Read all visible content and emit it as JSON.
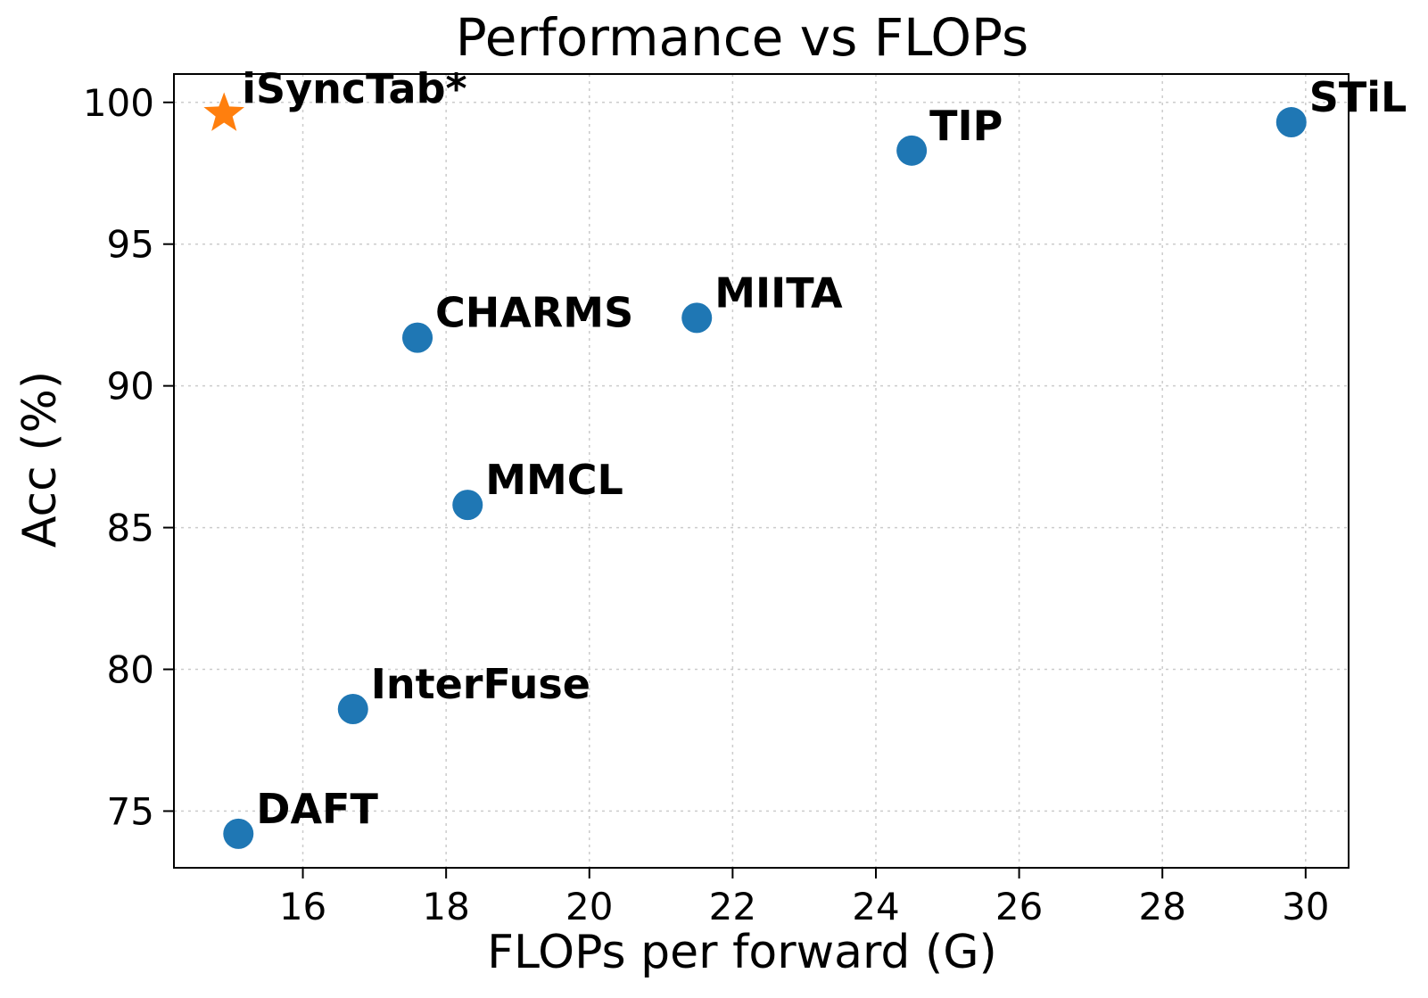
{
  "chart_data": {
    "type": "scatter",
    "title": "Performance vs FLOPs",
    "xlabel": "FLOPs per forward (G)",
    "ylabel": "Acc (%)",
    "xlim": [
      14.2,
      30.6
    ],
    "ylim": [
      73.0,
      101.0
    ],
    "xticks": [
      16,
      18,
      20,
      22,
      24,
      26,
      28,
      30
    ],
    "yticks": [
      75,
      80,
      85,
      90,
      95,
      100
    ],
    "grid": true,
    "colors": {
      "baseline": "#1f77b4",
      "highlight": "#ff7f0e"
    },
    "points": [
      {
        "label": "DAFT",
        "x": 15.1,
        "y": 74.2,
        "marker": "circle"
      },
      {
        "label": "InterFuse",
        "x": 16.7,
        "y": 78.6,
        "marker": "circle"
      },
      {
        "label": "CHARMS",
        "x": 17.6,
        "y": 91.7,
        "marker": "circle"
      },
      {
        "label": "MMCL",
        "x": 18.3,
        "y": 85.8,
        "marker": "circle"
      },
      {
        "label": "MIITA",
        "x": 21.5,
        "y": 92.4,
        "marker": "circle"
      },
      {
        "label": "TIP",
        "x": 24.5,
        "y": 98.3,
        "marker": "circle"
      },
      {
        "label": "STiL",
        "x": 29.8,
        "y": 99.3,
        "marker": "circle"
      },
      {
        "label": "iSyncTab*",
        "x": 14.9,
        "y": 99.6,
        "marker": "star"
      }
    ]
  }
}
